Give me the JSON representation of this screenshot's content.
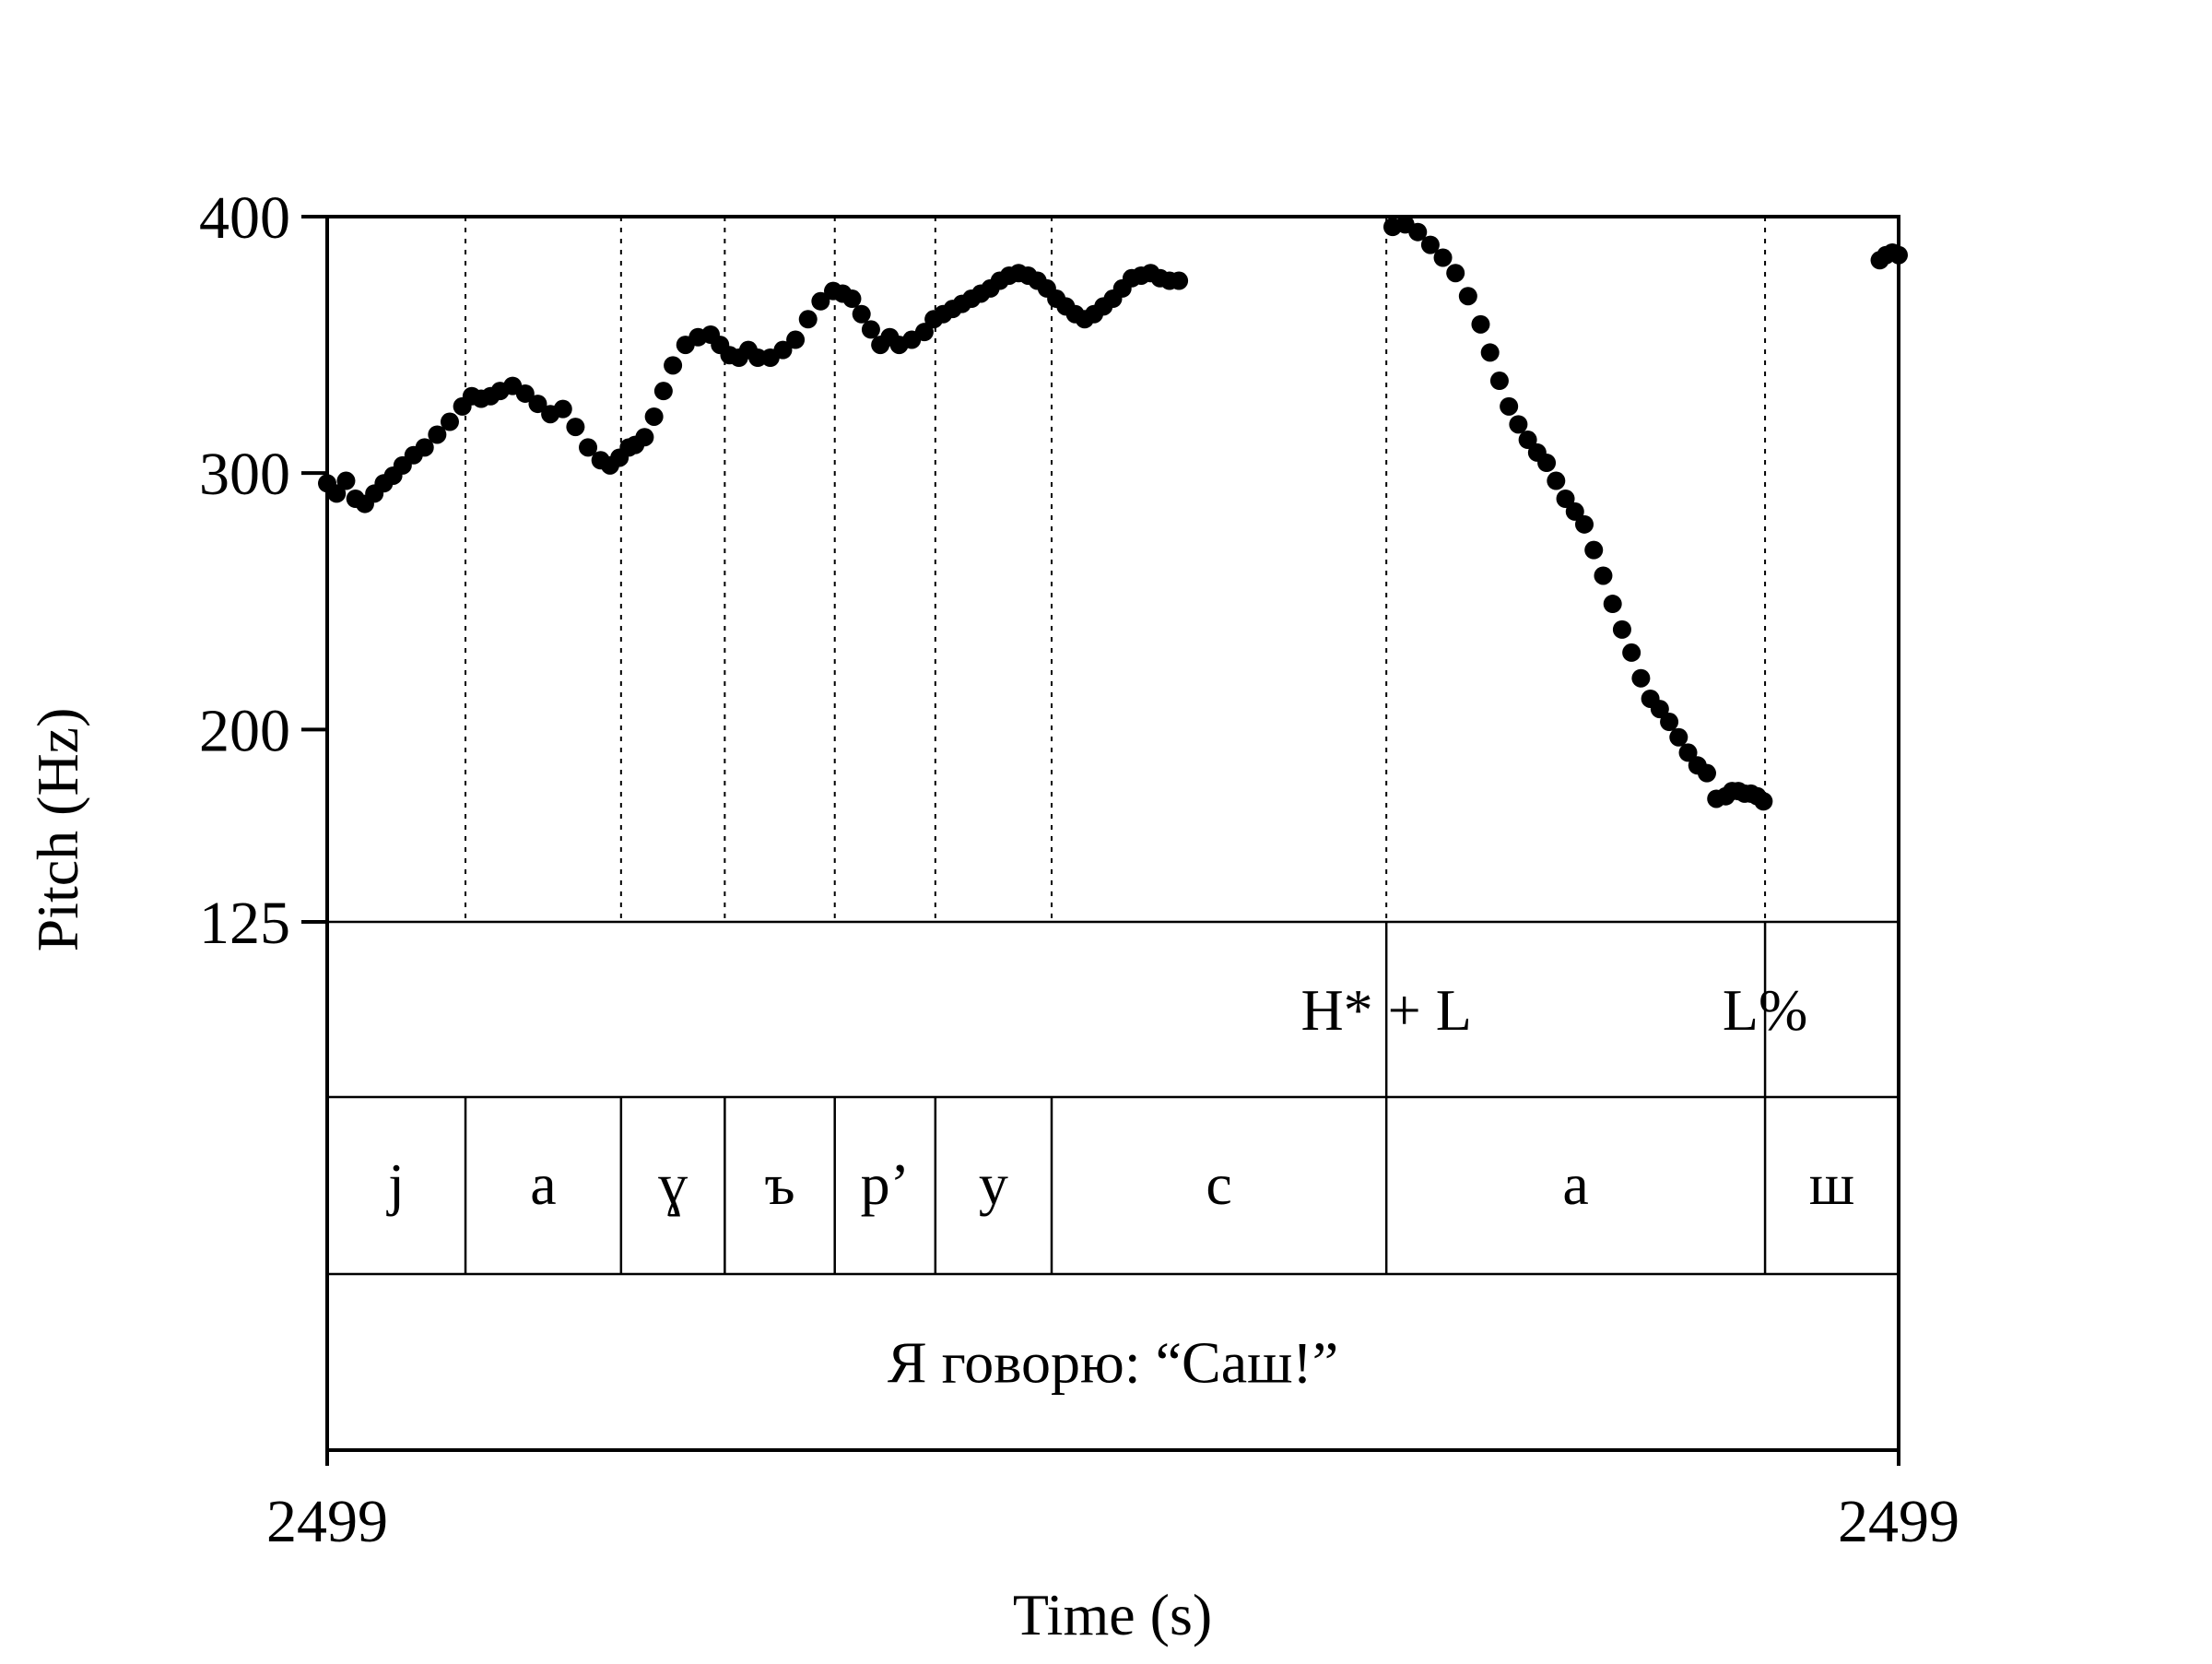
{
  "chart_data": {
    "type": "scatter",
    "xlabel": "Time (s)",
    "ylabel": "Pitch (Hz)",
    "x_tick_labels": [
      "2499",
      "2499"
    ],
    "xlim": [
      0,
      1
    ],
    "ylim": [
      125,
      400
    ],
    "y_ticks": [
      125,
      200,
      300,
      400
    ],
    "grid": false,
    "colors": {
      "points": "#000000",
      "axes": "#000000",
      "background": "#ffffff"
    },
    "segment_boundaries": [
      0.088,
      0.187,
      0.253,
      0.323,
      0.387,
      0.461,
      0.674,
      0.915
    ],
    "tiers": [
      {
        "name": "tones",
        "labels": [
          {
            "text": "H* + L",
            "x": 0.674
          },
          {
            "text": "L%",
            "x": 0.915
          }
        ]
      },
      {
        "name": "segments",
        "labels": [
          {
            "text": "j",
            "x0": 0.0,
            "x1": 0.088
          },
          {
            "text": "а",
            "x0": 0.088,
            "x1": 0.187
          },
          {
            "text": "ɣ",
            "x0": 0.187,
            "x1": 0.253
          },
          {
            "text": "ъ",
            "x0": 0.253,
            "x1": 0.323
          },
          {
            "text": "р’",
            "x0": 0.323,
            "x1": 0.387
          },
          {
            "text": "у",
            "x0": 0.387,
            "x1": 0.461
          },
          {
            "text": "с",
            "x0": 0.461,
            "x1": 0.674
          },
          {
            "text": "а",
            "x0": 0.674,
            "x1": 0.915
          },
          {
            "text": "ш",
            "x0": 0.915,
            "x1": 1.0
          }
        ]
      },
      {
        "name": "sentence",
        "labels": [
          {
            "text": "Я говорю: “Саш!”",
            "x0": 0.0,
            "x1": 1.0
          }
        ]
      }
    ],
    "series": [
      {
        "points_x": [
          0.0,
          0.006,
          0.012,
          0.018,
          0.024,
          0.03,
          0.036,
          0.042,
          0.048,
          0.055,
          0.062,
          0.07,
          0.078,
          0.086,
          0.092,
          0.098,
          0.104,
          0.11,
          0.118,
          0.126,
          0.134,
          0.142,
          0.15,
          0.158,
          0.166,
          0.174,
          0.18,
          0.186,
          0.192,
          0.196,
          0.202,
          0.208,
          0.214,
          0.22,
          0.228,
          0.236,
          0.244,
          0.25,
          0.256,
          0.262,
          0.268,
          0.274,
          0.282,
          0.29,
          0.298,
          0.306,
          0.314,
          0.322,
          0.328,
          0.334,
          0.34,
          0.346,
          0.352,
          0.358,
          0.364,
          0.372,
          0.38,
          0.386,
          0.392,
          0.398,
          0.404,
          0.41,
          0.416,
          0.422,
          0.428,
          0.434,
          0.44,
          0.446,
          0.452,
          0.458,
          0.464,
          0.47,
          0.476,
          0.482,
          0.488,
          0.494,
          0.5,
          0.506,
          0.512,
          0.518,
          0.524,
          0.53,
          0.536,
          0.542
        ],
        "points_y": [
          296,
          292,
          297,
          290,
          288,
          292,
          296,
          299,
          303,
          307,
          310,
          315,
          320,
          326,
          330,
          329,
          330,
          332,
          334,
          331,
          327,
          323,
          325,
          318,
          310,
          305,
          303,
          306,
          310,
          311,
          314,
          322,
          332,
          342,
          350,
          353,
          354,
          350,
          346,
          345,
          348,
          345,
          345,
          348,
          352,
          360,
          367,
          371,
          370,
          368,
          362,
          356,
          350,
          353,
          350,
          352,
          355,
          360,
          362,
          364,
          366,
          368,
          370,
          372,
          375,
          377,
          378,
          377,
          375,
          372,
          368,
          365,
          362,
          360,
          362,
          365,
          368,
          372,
          376,
          377,
          378,
          376,
          375,
          375
        ]
      },
      {
        "points_x": [
          0.678,
          0.686,
          0.694,
          0.702,
          0.71,
          0.718,
          0.726,
          0.734,
          0.74,
          0.746,
          0.752,
          0.758,
          0.764,
          0.77,
          0.776,
          0.782,
          0.788,
          0.794,
          0.8,
          0.806,
          0.812,
          0.818,
          0.824,
          0.83,
          0.836,
          0.842,
          0.848,
          0.854,
          0.86,
          0.866,
          0.872,
          0.878,
          0.884,
          0.89,
          0.894,
          0.898,
          0.902,
          0.906,
          0.91,
          0.914
        ],
        "points_y": [
          396,
          397,
          394,
          389,
          384,
          378,
          369,
          358,
          347,
          336,
          326,
          319,
          313,
          308,
          304,
          297,
          290,
          285,
          280,
          270,
          260,
          249,
          239,
          230,
          220,
          212,
          208,
          203,
          197,
          191,
          186,
          183,
          173,
          174,
          176,
          176,
          175,
          175,
          174,
          172
        ]
      },
      {
        "points_x": [
          0.988,
          0.992,
          0.996,
          1.0
        ],
        "points_y": [
          383,
          385,
          386,
          385
        ]
      }
    ]
  }
}
